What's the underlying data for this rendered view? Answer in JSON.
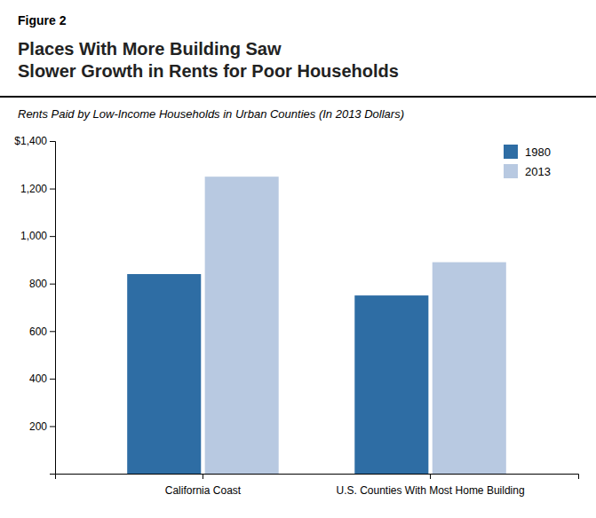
{
  "chart_data": {
    "type": "bar",
    "annotations": [
      "Figure 2"
    ],
    "title": "Places With More Building Saw\nSlower Growth in Rents for Poor Households",
    "subtitle": "Rents Paid by Low-Income Households in Urban Counties (In 2013 Dollars)",
    "categories": [
      "California Coast",
      "U.S. Counties With Most Home Building"
    ],
    "series": [
      {
        "name": "1980",
        "color": "#2e6da4",
        "values": [
          840,
          750
        ]
      },
      {
        "name": "2013",
        "color": "#b8c9e1",
        "values": [
          1250,
          890
        ]
      }
    ],
    "ylim": [
      0,
      1400
    ],
    "yticks": [
      200,
      400,
      600,
      800,
      {
        "value": 1000,
        "label": "1,000"
      },
      {
        "value": 1200,
        "label": "1,200"
      },
      {
        "value": 1400,
        "label": "$1,400"
      }
    ],
    "legend": "upper right",
    "grid": false
  }
}
